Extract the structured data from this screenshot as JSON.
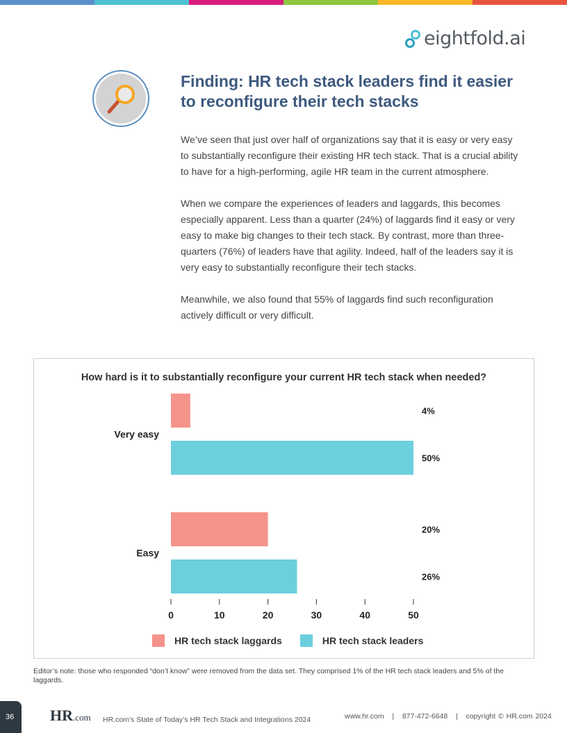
{
  "stripe_colors": [
    "#5B8FCB",
    "#4DC1D4",
    "#D81B7E",
    "#8DC63F",
    "#FBB829",
    "#E8533F"
  ],
  "logo": {
    "text": "eightfold.ai"
  },
  "badge": {
    "icon": "magnifying-glass-icon"
  },
  "heading": "Finding: HR tech stack leaders find it easier to reconfigure their tech stacks",
  "paragraphs": [
    "We’ve seen that just over half of organizations say that it is easy or very easy to substantially reconfigure their existing HR tech stack. That is a crucial ability to have for a high-performing, agile HR team in the current atmosphere.",
    "When we compare the experiences of leaders and laggards, this becomes especially apparent. Less than a quarter (24%) of laggards find it easy or very easy to make big changes to their tech stack. By contrast, more than three-quarters (76%) of leaders have that agility. Indeed, half of the leaders say it is very easy to substantially reconfigure their tech stacks.",
    "Meanwhile, we also found that 55% of laggards find such reconfiguration actively difficult or very difficult."
  ],
  "chart_data": {
    "type": "bar",
    "orientation": "horizontal",
    "title": "How hard is it to substantially reconfigure your current HR tech stack when needed?",
    "categories": [
      "Very easy",
      "Easy"
    ],
    "series": [
      {
        "name": "HR tech stack laggards",
        "color": "#F4938A",
        "values": [
          4,
          20
        ],
        "labels": [
          "4%",
          "20%"
        ]
      },
      {
        "name": "HR tech stack leaders",
        "color": "#6CCFDD",
        "values": [
          50,
          26
        ],
        "labels": [
          "50%",
          "26%"
        ]
      }
    ],
    "xlim": [
      0,
      50
    ],
    "xticks": [
      "0",
      "10",
      "20",
      "30",
      "40",
      "50"
    ],
    "grid": false,
    "legend": "bottom"
  },
  "note": "Editor’s note: those who responded “don’t know” were removed from the data set. They comprised 1% of the HR tech stack leaders and 5% of the laggards.",
  "footer": {
    "page": "36",
    "logo_main": "HR",
    "logo_suffix": ".com",
    "title": "HR.com’s State of Today’s HR Tech Stack and Integrations 2024",
    "contact": "www.hr.com   |   877-472-6648   |   copyright © HR.com 2024"
  }
}
